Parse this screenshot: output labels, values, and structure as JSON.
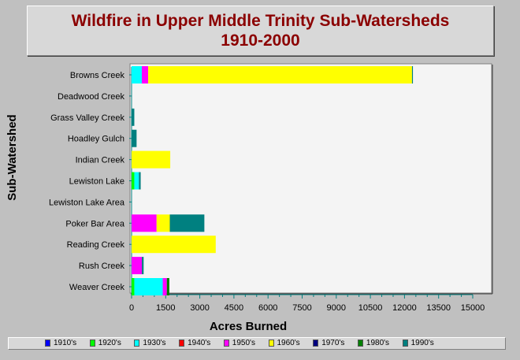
{
  "chart_data": {
    "type": "bar",
    "orientation": "horizontal",
    "stacked": true,
    "title": "Wildfire in Upper Middle Trinity Sub-Watersheds",
    "subtitle": "1910-2000",
    "xlabel": "Acres Burned",
    "ylabel": "Sub-Watershed",
    "xlim": [
      0,
      15000
    ],
    "xticks": [
      "0",
      "1500",
      "3000",
      "4500",
      "6000",
      "7500",
      "9000",
      "10500",
      "12000",
      "13500",
      "15000"
    ],
    "categories": [
      "Browns Creek",
      "Deadwood Creek",
      "Grass Valley Creek",
      "Hoadley Gulch",
      "Indian Creek",
      "Lewiston Lake",
      "Lewiston Lake Area",
      "Poker Bar Area",
      "Reading Creek",
      "Rush Creek",
      "Weaver Creek"
    ],
    "series": [
      {
        "name": "1910's",
        "color": "#0000ff",
        "values": [
          0,
          0,
          0,
          0,
          0,
          0,
          0,
          0,
          0,
          0,
          0
        ]
      },
      {
        "name": "1920's",
        "color": "#00ff00",
        "values": [
          0,
          0,
          0,
          0,
          0,
          120,
          0,
          0,
          0,
          0,
          120
        ]
      },
      {
        "name": "1930's",
        "color": "#00ffff",
        "values": [
          450,
          0,
          0,
          0,
          0,
          200,
          0,
          0,
          0,
          0,
          1250
        ]
      },
      {
        "name": "1940's",
        "color": "#ff0000",
        "values": [
          0,
          0,
          0,
          0,
          0,
          0,
          0,
          0,
          0,
          0,
          0
        ]
      },
      {
        "name": "1950's",
        "color": "#ff00ff",
        "values": [
          280,
          0,
          0,
          0,
          0,
          0,
          0,
          1100,
          0,
          450,
          180
        ]
      },
      {
        "name": "1960's",
        "color": "#ffff00",
        "values": [
          11600,
          0,
          0,
          0,
          1700,
          0,
          0,
          580,
          3700,
          0,
          0
        ]
      },
      {
        "name": "1970's",
        "color": "#000080",
        "values": [
          0,
          0,
          0,
          0,
          0,
          0,
          0,
          0,
          0,
          0,
          0
        ]
      },
      {
        "name": "1980's",
        "color": "#008000",
        "values": [
          0,
          0,
          0,
          0,
          0,
          0,
          0,
          0,
          0,
          0,
          110
        ]
      },
      {
        "name": "1990's",
        "color": "#008080",
        "values": [
          40,
          0,
          120,
          220,
          0,
          80,
          0,
          1520,
          0,
          80,
          0
        ]
      }
    ],
    "legend_position": "bottom",
    "grid": false
  }
}
